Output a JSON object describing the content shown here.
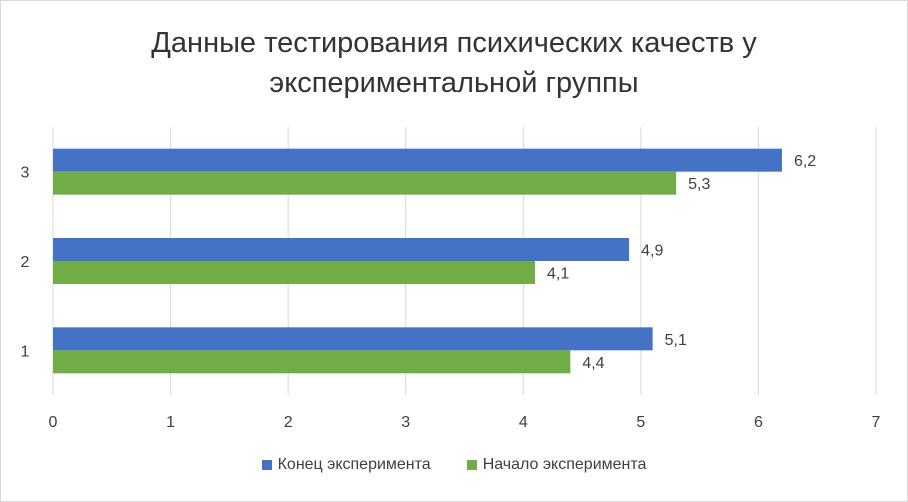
{
  "chart_data": {
    "type": "bar",
    "orientation": "horizontal",
    "title_lines": [
      "Данные тестирования психических качеств у",
      "экспериментальной группы"
    ],
    "categories": [
      "1",
      "2",
      "3"
    ],
    "series": [
      {
        "name": "Начало эксперимента",
        "values": [
          4.4,
          4.1,
          5.3
        ],
        "labels": [
          "4,4",
          "4,1",
          "5,3"
        ],
        "color": "#70ad47"
      },
      {
        "name": "Конец эксперимента",
        "values": [
          5.1,
          4.9,
          6.2
        ],
        "labels": [
          "5,1",
          "4,9",
          "6,2"
        ],
        "color": "#4472c4"
      }
    ],
    "xlim": [
      0,
      7
    ],
    "x_ticks": [
      "0",
      "1",
      "2",
      "3",
      "4",
      "5",
      "6",
      "7"
    ],
    "grid": true,
    "legend_position": "bottom",
    "legend_order": [
      "Конец эксперимента",
      "Начало эксперимента"
    ]
  }
}
